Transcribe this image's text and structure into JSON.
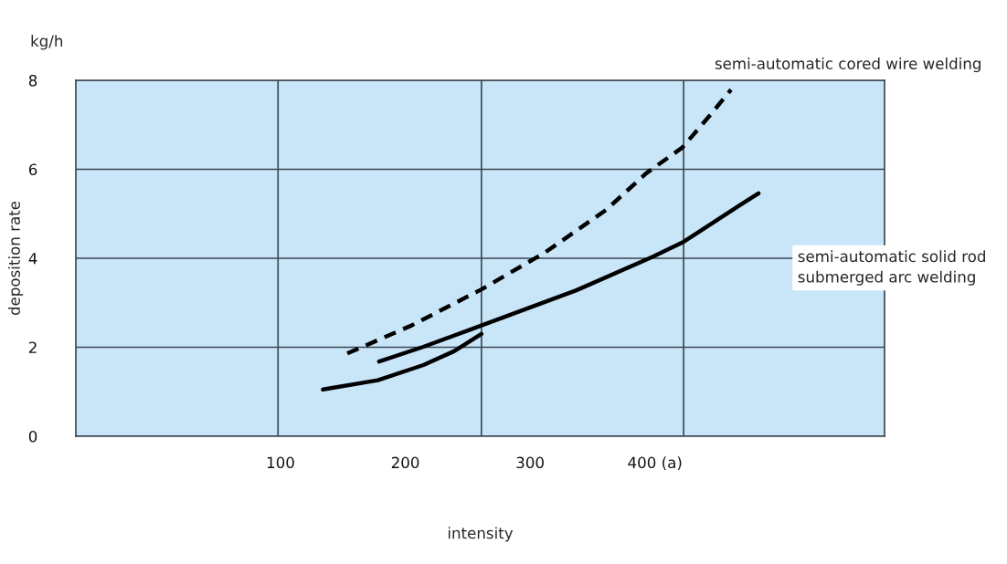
{
  "chart_data": {
    "type": "line",
    "xlabel": "intensity",
    "ylabel": "deposition rate",
    "annotations": [
      "kg/h",
      "semi-automatic cored wire welding",
      "semi-automatic solid rod\nsubmerged arc welding"
    ],
    "series": [
      {
        "color": "#000000",
        "line_style": "dashed",
        "x": [
          153.5,
          205,
          261,
          312,
          361,
          393,
          422,
          444,
          461
        ],
        "values": [
          1.86,
          2.49,
          3.3,
          4.13,
          5.09,
          5.91,
          6.49,
          7.21,
          7.79
        ]
      },
      {
        "color": "#000000",
        "line_style": "solid",
        "x": [
          179,
          214.5,
          261,
          337,
          398,
          423,
          468,
          483
        ],
        "values": [
          1.68,
          2.01,
          2.49,
          3.28,
          4.03,
          4.37,
          5.19,
          5.46
        ]
      },
      {
        "color": "#000000",
        "line_style": "solid",
        "x": [
          134,
          178,
          214.5,
          239,
          261
        ],
        "values": [
          1.05,
          1.26,
          1.6,
          1.91,
          2.3
        ]
      }
    ],
    "xlim": [
      -64,
      584
    ],
    "xticks": [
      100,
      200,
      300,
      {
        "value": 400,
        "label": "400 (a)"
      }
    ],
    "ylim": [
      0,
      8
    ],
    "yticks": [
      0,
      2,
      4,
      6,
      8
    ],
    "grid": "y",
    "ref_lines": [
      {
        "axis": "x",
        "value": 98,
        "color": "#3a4650"
      },
      {
        "axis": "x",
        "value": 261,
        "color": "#3a4650"
      },
      {
        "axis": "x",
        "value": 423,
        "color": "#3a4650"
      }
    ],
    "marker": "none"
  }
}
